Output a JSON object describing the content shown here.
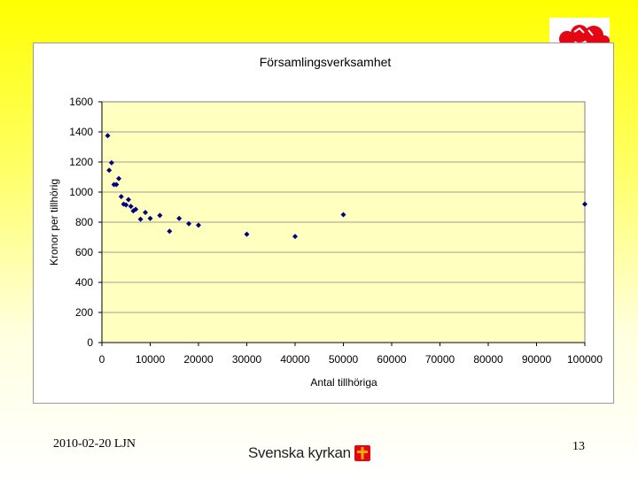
{
  "slide": {
    "footer_date": "2010-02-20 LJN",
    "page_number": "13",
    "brand_text": "Svenska kyrkan",
    "brand_color": "#e30613",
    "brand_accent": "#f5a800"
  },
  "chart_data": {
    "type": "scatter",
    "title": "Församlingsverksamhet",
    "xlabel": "Antal tillhöriga",
    "ylabel": "Kronor per tillhörig",
    "xlim": [
      0,
      100000
    ],
    "ylim": [
      0,
      1600
    ],
    "xticks": [
      0,
      10000,
      20000,
      30000,
      40000,
      50000,
      60000,
      70000,
      80000,
      90000,
      100000
    ],
    "yticks": [
      0,
      200,
      400,
      600,
      800,
      1000,
      1200,
      1400,
      1600
    ],
    "xtick_labels": [
      "0",
      "10000",
      "20000",
      "30000",
      "40000",
      "50000",
      "60000",
      "70000",
      "80000",
      "90000",
      "100000"
    ],
    "ytick_labels": [
      "0",
      "200",
      "400",
      "600",
      "800",
      "1000",
      "1200",
      "1400",
      "1600"
    ],
    "grid": "horizontal",
    "plot_background": "#ffffc0",
    "marker_color": "#000080",
    "points": [
      {
        "x": 1200,
        "y": 1375
      },
      {
        "x": 1500,
        "y": 1145
      },
      {
        "x": 2000,
        "y": 1195
      },
      {
        "x": 2500,
        "y": 1050
      },
      {
        "x": 3000,
        "y": 1050
      },
      {
        "x": 3500,
        "y": 1090
      },
      {
        "x": 4000,
        "y": 970
      },
      {
        "x": 4500,
        "y": 920
      },
      {
        "x": 5000,
        "y": 915
      },
      {
        "x": 5500,
        "y": 950
      },
      {
        "x": 6000,
        "y": 905
      },
      {
        "x": 6500,
        "y": 875
      },
      {
        "x": 7000,
        "y": 885
      },
      {
        "x": 8000,
        "y": 820
      },
      {
        "x": 9000,
        "y": 865
      },
      {
        "x": 10000,
        "y": 825
      },
      {
        "x": 12000,
        "y": 845
      },
      {
        "x": 14000,
        "y": 740
      },
      {
        "x": 16000,
        "y": 825
      },
      {
        "x": 18000,
        "y": 790
      },
      {
        "x": 20000,
        "y": 780
      },
      {
        "x": 30000,
        "y": 720
      },
      {
        "x": 40000,
        "y": 705
      },
      {
        "x": 50000,
        "y": 850
      },
      {
        "x": 100000,
        "y": 920
      }
    ]
  }
}
